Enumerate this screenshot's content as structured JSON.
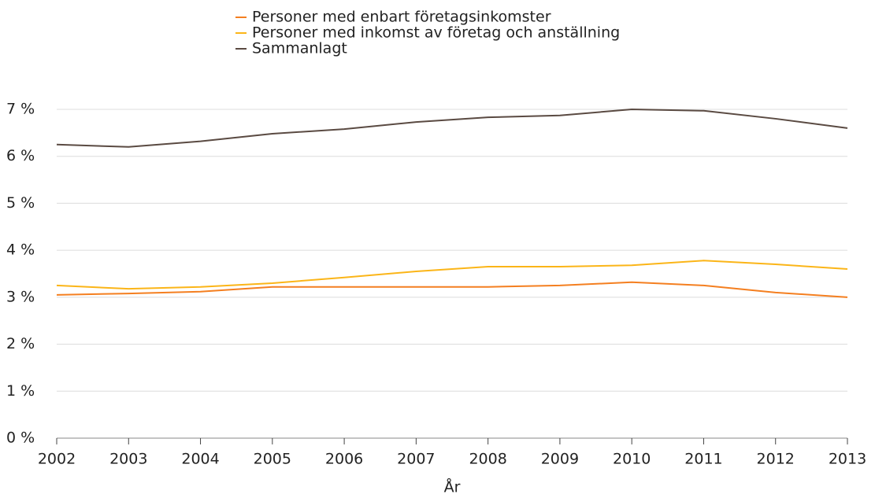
{
  "chart_data": {
    "type": "line",
    "x_label": "År",
    "x": [
      2002,
      2003,
      2004,
      2005,
      2006,
      2007,
      2008,
      2009,
      2010,
      2011,
      2012,
      2013
    ],
    "series": [
      {
        "name": "Personer med enbart företagsinkomster",
        "color": "#f47f20",
        "values": [
          3.05,
          3.08,
          3.12,
          3.22,
          3.22,
          3.22,
          3.22,
          3.25,
          3.32,
          3.25,
          3.1,
          3.0
        ]
      },
      {
        "name": "Personer med inkomst av företag och anställning",
        "color": "#fbb518",
        "values": [
          3.25,
          3.18,
          3.22,
          3.3,
          3.42,
          3.55,
          3.65,
          3.65,
          3.68,
          3.78,
          3.7,
          3.6
        ]
      },
      {
        "name": "Sammanlagt",
        "color": "#5a4a42",
        "values": [
          6.25,
          6.2,
          6.32,
          6.48,
          6.58,
          6.73,
          6.83,
          6.87,
          7.0,
          6.97,
          6.8,
          6.6
        ]
      }
    ],
    "xlim": [
      2002,
      2013
    ],
    "xticks": [
      2002,
      2003,
      2004,
      2005,
      2006,
      2007,
      2008,
      2009,
      2010,
      2011,
      2012,
      2013
    ],
    "ylim": [
      0,
      7
    ],
    "yticks": [
      {
        "value": 0,
        "label": "0 %"
      },
      {
        "value": 1,
        "label": "1 %"
      },
      {
        "value": 2,
        "label": "2 %"
      },
      {
        "value": 3,
        "label": "3 %"
      },
      {
        "value": 4,
        "label": "4 %"
      },
      {
        "value": 5,
        "label": "5 %"
      },
      {
        "value": 6,
        "label": "6 %"
      },
      {
        "value": 7,
        "label": "7 %"
      }
    ],
    "grid": true,
    "legend": "top"
  }
}
